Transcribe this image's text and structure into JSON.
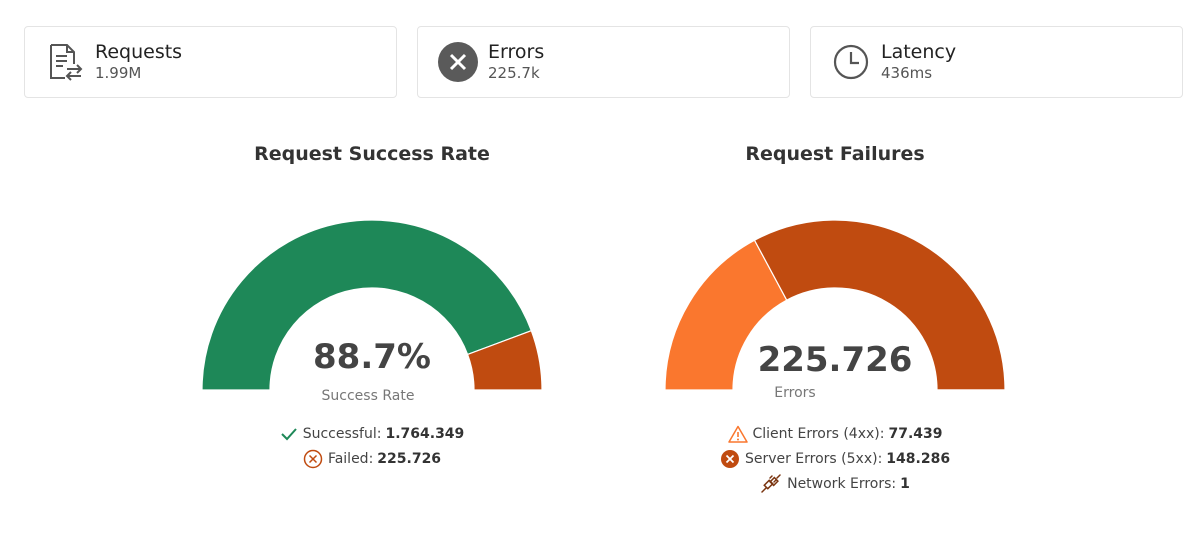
{
  "cards": [
    {
      "title": "Requests",
      "value": "1.99M",
      "icon": "request-transfer-icon"
    },
    {
      "title": "Errors",
      "value": "225.7k",
      "icon": "error-circle-icon"
    },
    {
      "title": "Latency",
      "value": "436ms",
      "icon": "clock-icon"
    }
  ],
  "colors": {
    "success": "#1e8858",
    "failed": "#c04b10",
    "client": "#fa772e",
    "server": "#c04b10",
    "track": "#ffffff"
  },
  "chart_data": [
    {
      "type": "pie",
      "subtype": "half-donut",
      "title": "Request Success Rate",
      "center_value": "88.7%",
      "center_label": "Success Rate",
      "categories": [
        "Successful",
        "Failed"
      ],
      "values": [
        1764349,
        225726
      ],
      "legend": [
        {
          "label": "Successful:",
          "value": "1.764.349",
          "icon": "check-icon"
        },
        {
          "label": "Failed:",
          "value": "225.726",
          "icon": "x-circle-icon"
        }
      ]
    },
    {
      "type": "pie",
      "subtype": "half-donut",
      "title": "Request Failures",
      "center_value": "225.726",
      "center_label": "Errors",
      "categories": [
        "Client Errors (4xx)",
        "Server Errors (5xx)",
        "Network Errors"
      ],
      "values": [
        77439,
        148286,
        1
      ],
      "legend": [
        {
          "label": "Client Errors (4xx):",
          "value": "77.439",
          "icon": "warning-icon"
        },
        {
          "label": "Server Errors (5xx):",
          "value": "148.286",
          "icon": "x-circle-filled-icon"
        },
        {
          "label": "Network Errors:",
          "value": "1",
          "icon": "plug-icon"
        }
      ]
    }
  ]
}
